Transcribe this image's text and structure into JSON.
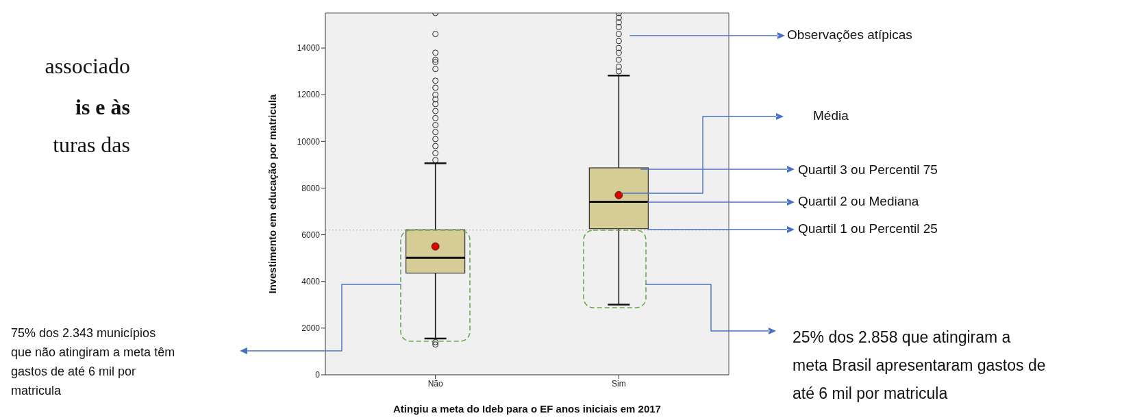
{
  "chart_data": {
    "type": "box",
    "xlabel": "Atingiu a meta do Ideb para o EF anos iniciais em 2017",
    "ylabel": "Investimento em educação por matricula",
    "categories": [
      "Não",
      "Sim"
    ],
    "boxes": [
      {
        "low": 1550,
        "q1": 4350,
        "median": 5000,
        "q3": 6200,
        "high": 9050,
        "mean": 5500,
        "outliers": [
          1400,
          1300,
          9200,
          9500,
          9800,
          10100,
          10400,
          10700,
          11000,
          11300,
          11600,
          11800,
          12000,
          12300,
          12600,
          13100,
          13400,
          13500,
          13800,
          14600,
          15500
        ]
      },
      {
        "low": 3000,
        "q1": 6250,
        "median": 7400,
        "q3": 8850,
        "high": 12800,
        "mean": 7700,
        "outliers": [
          13000,
          13200,
          13500,
          13800,
          14000,
          14300,
          14600,
          14900,
          15100,
          15300,
          15500
        ]
      }
    ],
    "color": "#d6cc96",
    "ylim": [
      0,
      15500
    ],
    "yticks": [
      0,
      2000,
      4000,
      6000,
      8000,
      10000,
      12000,
      14000
    ],
    "ref_lines": [
      {
        "axis": "y",
        "value": 6200,
        "color": "#aaaaaa",
        "line_style": "dotted"
      }
    ],
    "annotations": [
      "associado",
      "is e às",
      "turas das",
      "Observações atípicas",
      "Média",
      "Quartil 3 ou Percentil 75",
      "Quartil 2 ou Mediana",
      "Quartil 1 ou Percentil 25",
      "75% dos 2.343 municípios que não atingiram a meta têm gastos de até 6 mil por matricula",
      "25% dos 2.858 que atingiram a meta Brasil apresentaram gastos de até 6 mil por matricula"
    ]
  }
}
